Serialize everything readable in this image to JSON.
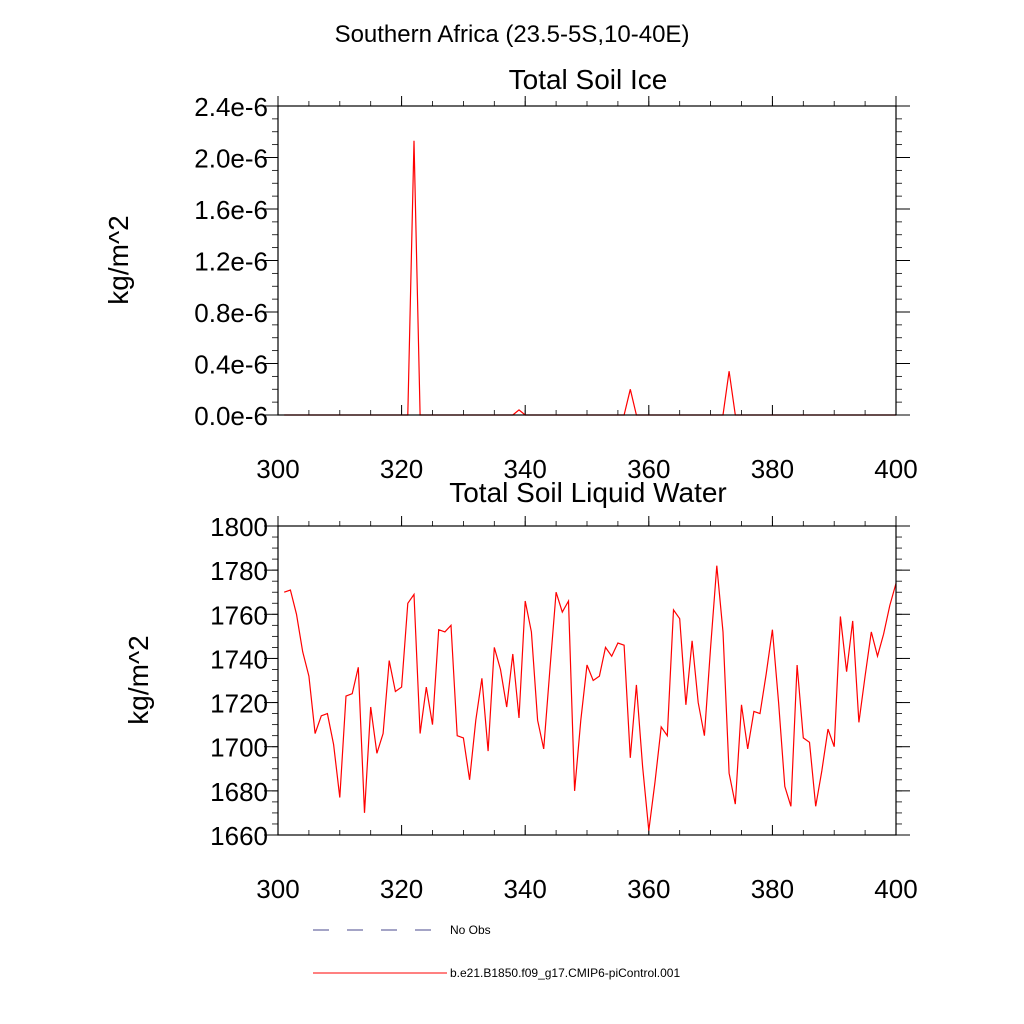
{
  "header": {
    "title": "Southern Africa (23.5-5S,10-40E)"
  },
  "chart_data": [
    {
      "type": "line",
      "title": "Total Soil Ice",
      "xlabel": "",
      "ylabel": "kg/m^2",
      "xlim": [
        300,
        400
      ],
      "ylim": [
        0,
        2.4e-06
      ],
      "x_ticks": [
        "300",
        "320",
        "340",
        "360",
        "380",
        "400"
      ],
      "y_ticks": [
        "0.0e-6",
        "0.4e-6",
        "0.8e-6",
        "1.2e-6",
        "1.6e-6",
        "2.0e-6",
        "2.4e-6"
      ],
      "series": [
        {
          "name": "b.e21.B1850.f09_g17.CMIP6-piControl.001",
          "color": "#ff0000",
          "x": [
            301,
            302,
            303,
            304,
            305,
            306,
            307,
            308,
            309,
            310,
            311,
            312,
            313,
            314,
            315,
            316,
            317,
            318,
            319,
            320,
            321,
            322,
            323,
            324,
            325,
            326,
            327,
            328,
            329,
            330,
            331,
            332,
            333,
            334,
            335,
            336,
            337,
            338,
            339,
            340,
            341,
            342,
            343,
            344,
            345,
            346,
            347,
            348,
            349,
            350,
            351,
            352,
            353,
            354,
            355,
            356,
            357,
            358,
            359,
            360,
            361,
            362,
            363,
            364,
            365,
            366,
            367,
            368,
            369,
            370,
            371,
            372,
            373,
            374,
            375,
            376,
            377,
            378,
            379,
            380,
            381,
            382,
            383,
            384,
            385,
            386,
            387,
            388,
            389,
            390,
            391,
            392,
            393,
            394,
            395,
            396,
            397,
            398,
            399,
            400
          ],
          "values": [
            0,
            0,
            0,
            0,
            0,
            0,
            0,
            0,
            0,
            0,
            0,
            0,
            0,
            0,
            0,
            0,
            0,
            0,
            0,
            0,
            0,
            2.13e-06,
            0,
            0,
            0,
            0,
            0,
            0,
            0,
            0,
            0,
            0,
            0,
            0,
            0,
            0,
            0,
            0,
            4e-08,
            0,
            0,
            0,
            0,
            0,
            0,
            0,
            0,
            0,
            0,
            0,
            0,
            0,
            0,
            0,
            0,
            0,
            2e-07,
            0,
            0,
            0,
            0,
            0,
            0,
            0,
            0,
            0,
            0,
            0,
            0,
            0,
            0,
            0,
            3.4e-07,
            0,
            0,
            0,
            0,
            0,
            0,
            0,
            0,
            0,
            0,
            0,
            0,
            0,
            0,
            0,
            0,
            0,
            0,
            0,
            0,
            0,
            0,
            0,
            0,
            0,
            0,
            0
          ]
        }
      ]
    },
    {
      "type": "line",
      "title": "Total Soil Liquid Water",
      "xlabel": "",
      "ylabel": "kg/m^2",
      "xlim": [
        300,
        400
      ],
      "ylim": [
        1660,
        1800
      ],
      "x_ticks": [
        "300",
        "320",
        "340",
        "360",
        "380",
        "400"
      ],
      "y_ticks": [
        "1660",
        "1680",
        "1700",
        "1720",
        "1740",
        "1760",
        "1780",
        "1800"
      ],
      "series": [
        {
          "name": "b.e21.B1850.f09_g17.CMIP6-piControl.001",
          "color": "#ff0000",
          "x": [
            301,
            302,
            303,
            304,
            305,
            306,
            307,
            308,
            309,
            310,
            311,
            312,
            313,
            314,
            315,
            316,
            317,
            318,
            319,
            320,
            321,
            322,
            323,
            324,
            325,
            326,
            327,
            328,
            329,
            330,
            331,
            332,
            333,
            334,
            335,
            336,
            337,
            338,
            339,
            340,
            341,
            342,
            343,
            344,
            345,
            346,
            347,
            348,
            349,
            350,
            351,
            352,
            353,
            354,
            355,
            356,
            357,
            358,
            359,
            360,
            361,
            362,
            363,
            364,
            365,
            366,
            367,
            368,
            369,
            370,
            371,
            372,
            373,
            374,
            375,
            376,
            377,
            378,
            379,
            380,
            381,
            382,
            383,
            384,
            385,
            386,
            387,
            388,
            389,
            390,
            391,
            392,
            393,
            394,
            395,
            396,
            397,
            398,
            399,
            400
          ],
          "values": [
            1770,
            1771,
            1760,
            1743,
            1732,
            1706,
            1714,
            1715,
            1701,
            1677,
            1723,
            1724,
            1736,
            1670,
            1718,
            1697,
            1706,
            1739,
            1725,
            1727,
            1765,
            1769,
            1706,
            1727,
            1710,
            1753,
            1752,
            1755,
            1705,
            1704,
            1685,
            1712,
            1731,
            1698,
            1745,
            1735,
            1718,
            1742,
            1713,
            1766,
            1752,
            1712,
            1699,
            1735,
            1770,
            1761,
            1766,
            1680,
            1712,
            1737,
            1730,
            1732,
            1745,
            1741,
            1747,
            1746,
            1695,
            1728,
            1691,
            1662,
            1684,
            1709,
            1705,
            1762,
            1758,
            1719,
            1748,
            1720,
            1705,
            1745,
            1782,
            1752,
            1688,
            1674,
            1719,
            1699,
            1716,
            1715,
            1733,
            1753,
            1720,
            1682,
            1673,
            1737,
            1704,
            1702,
            1673,
            1689,
            1708,
            1700,
            1759,
            1734,
            1757,
            1711,
            1732,
            1752,
            1741,
            1751,
            1764,
            1774
          ]
        }
      ]
    }
  ],
  "legend": {
    "items": [
      {
        "label": "No Obs",
        "style": "dashed",
        "color": "#4a4a8c"
      },
      {
        "label": "b.e21.B1850.f09_g17.CMIP6-piControl.001",
        "style": "solid",
        "color": "#ff0000"
      }
    ]
  }
}
